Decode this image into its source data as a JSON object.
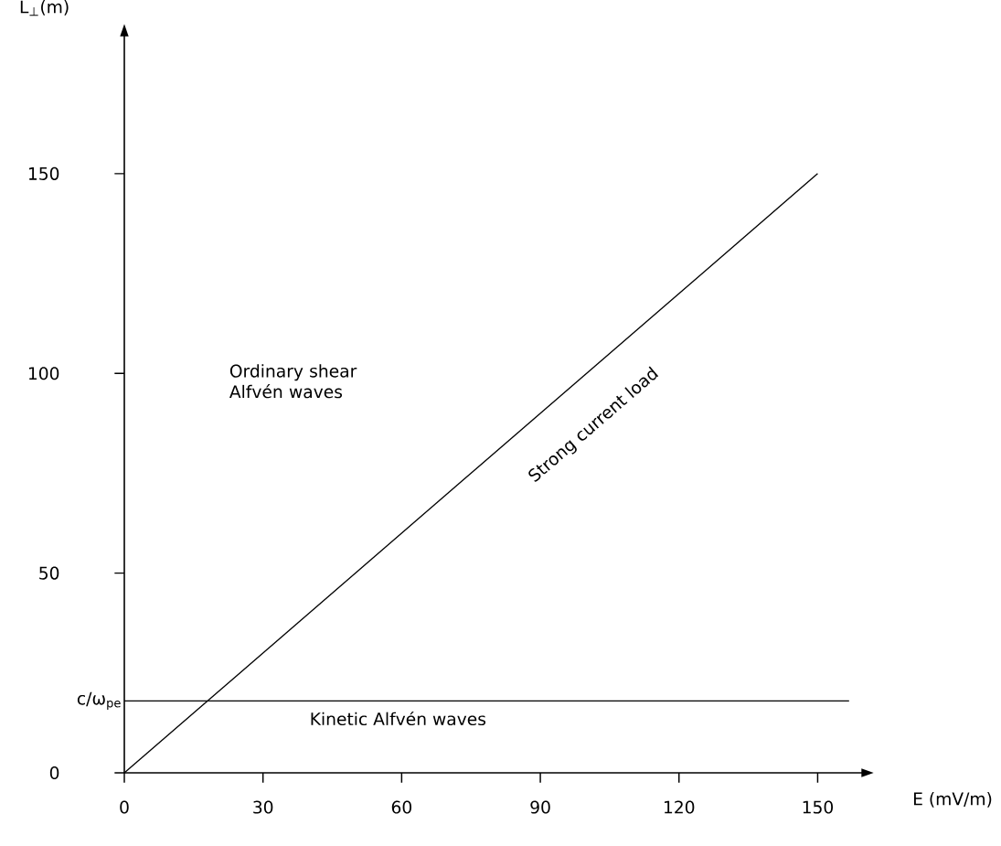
{
  "chart_data": {
    "type": "line",
    "xlabel": "E (mV/m)",
    "ylabel": "L$_{⊥}$(m)",
    "x": [
      0,
      150
    ],
    "series": [
      {
        "color": "#000000",
        "values": [
          0,
          150
        ]
      }
    ],
    "xlim": [
      0,
      160
    ],
    "ylim": [
      0,
      185
    ],
    "xticks": [
      0,
      30,
      60,
      90,
      120,
      150
    ],
    "yticks": [
      0,
      50,
      100,
      150
    ],
    "ref_lines": [
      {
        "axis": "y",
        "value": 18,
        "label": "c/ω$_{pe}$"
      }
    ],
    "annotations": [
      "Ordinary shear Alfvén waves",
      "Strong current load",
      "Kinetic Alfvén waves"
    ]
  }
}
